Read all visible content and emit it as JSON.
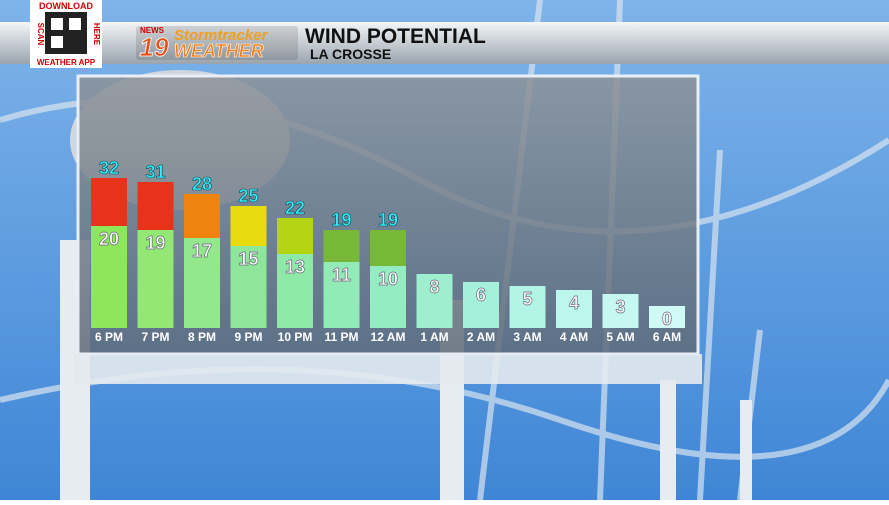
{
  "header": {
    "qr_top": "DOWNLOAD",
    "qr_left": "SCAN",
    "qr_right": "HERE",
    "qr_bottom": "WEATHER APP",
    "logo_news": "NEWS",
    "logo_number": "19",
    "logo_storm": "Stormtracker",
    "logo_weather": "WEATHER",
    "title": "WIND POTENTIAL",
    "subtitle": "LA CROSSE"
  },
  "chart_data": {
    "type": "bar",
    "categories": [
      "6 PM",
      "7 PM",
      "8 PM",
      "9 PM",
      "10 PM",
      "11 PM",
      "12 AM",
      "1 AM",
      "2 AM",
      "3 AM",
      "4 AM",
      "5 AM",
      "6 AM"
    ],
    "series": [
      {
        "values": [
          20,
          19,
          17,
          15,
          13,
          11,
          10,
          8,
          6,
          5,
          4,
          3,
          0
        ],
        "colors": [
          "#8ee65a",
          "#93e873",
          "#93e88e",
          "#8ee69a",
          "#8ee8a6",
          "#92eab6",
          "#96ecc2",
          "#9eeed0",
          "#a6f0da",
          "#b2f4e6",
          "#bcf6ec",
          "#c6f8f2",
          "#d0faf6"
        ]
      },
      {
        "values": [
          32,
          31,
          28,
          25,
          22,
          19,
          19,
          null,
          null,
          null,
          null,
          null,
          null
        ],
        "colors": [
          "#e8321a",
          "#e8321a",
          "#f0820e",
          "#e8dc10",
          "#b4d414",
          "#78b838",
          "#78b838",
          null,
          null,
          null,
          null,
          null,
          null
        ]
      }
    ]
  }
}
